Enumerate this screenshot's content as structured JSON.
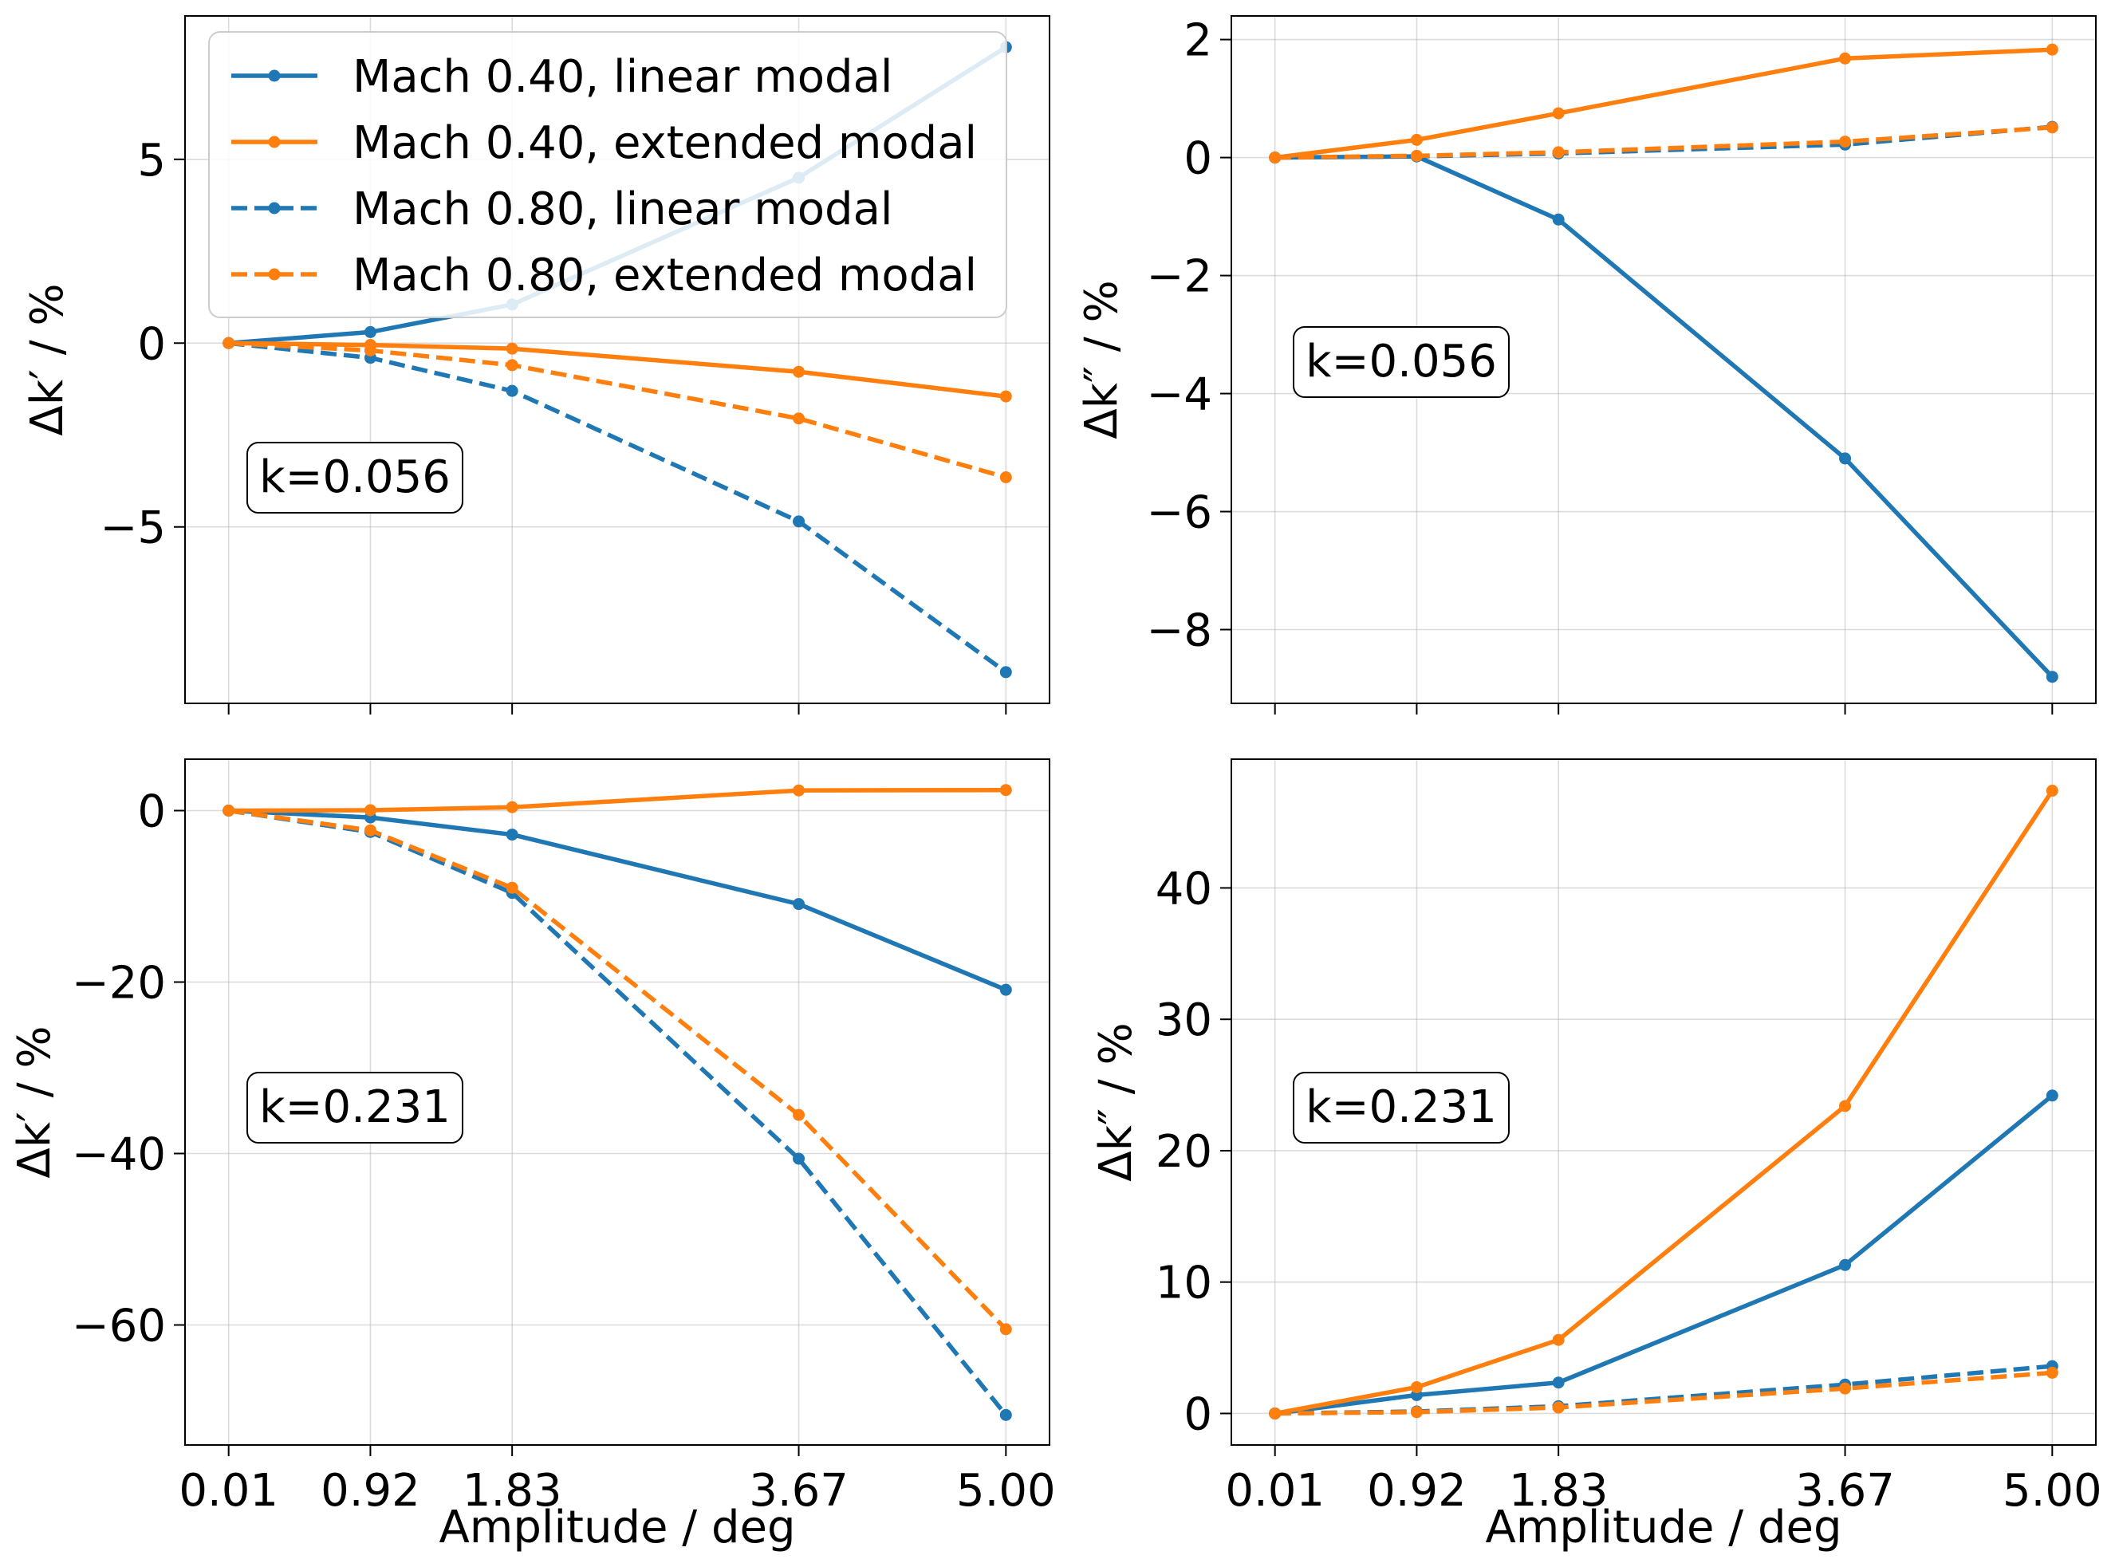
{
  "colors": {
    "blue": "#1f77b4",
    "orange": "#ff7f0e"
  },
  "legend": {
    "placement": "upper-left of top-left panel",
    "entries": [
      {
        "label": "Mach 0.40, linear modal",
        "color": "#1f77b4",
        "dash": "solid"
      },
      {
        "label": "Mach 0.40, extended modal",
        "color": "#ff7f0e",
        "dash": "solid"
      },
      {
        "label": "Mach 0.80, linear modal",
        "color": "#1f77b4",
        "dash": "dashed"
      },
      {
        "label": "Mach 0.80, extended modal",
        "color": "#ff7f0e",
        "dash": "dashed"
      }
    ]
  },
  "chart_data": [
    {
      "type": "line",
      "panel": "top-left",
      "annotation": "k=0.056",
      "xlabel": "",
      "ylabel": "Δk′ / %",
      "x": [
        0.01,
        0.92,
        1.83,
        3.67,
        5.0
      ],
      "xticks": [
        "0.01",
        "0.92",
        "1.83",
        "3.67",
        "5.00"
      ],
      "xlim": [
        -0.27,
        5.28
      ],
      "ylim": [
        -9.8,
        8.9
      ],
      "yticks": [
        -5,
        0,
        5
      ],
      "ytick_labels": [
        "−5",
        "0",
        "5"
      ],
      "grid": true,
      "series": [
        {
          "name": "Mach 0.40, linear modal",
          "color": "#1f77b4",
          "dash": "solid",
          "values": [
            0,
            0.3,
            1.05,
            4.5,
            8.05
          ]
        },
        {
          "name": "Mach 0.40, extended modal",
          "color": "#ff7f0e",
          "dash": "solid",
          "values": [
            0,
            -0.05,
            -0.15,
            -0.78,
            -1.45
          ]
        },
        {
          "name": "Mach 0.80, linear modal",
          "color": "#1f77b4",
          "dash": "dashed",
          "values": [
            0,
            -0.4,
            -1.3,
            -4.85,
            -8.95
          ]
        },
        {
          "name": "Mach 0.80, extended modal",
          "color": "#ff7f0e",
          "dash": "dashed",
          "values": [
            0,
            -0.2,
            -0.6,
            -2.05,
            -3.65
          ]
        }
      ]
    },
    {
      "type": "line",
      "panel": "top-right",
      "annotation": "k=0.056",
      "xlabel": "",
      "ylabel": "Δk″ / %",
      "x": [
        0.01,
        0.92,
        1.83,
        3.67,
        5.0
      ],
      "xticks": [
        "0.01",
        "0.92",
        "1.83",
        "3.67",
        "5.00"
      ],
      "xlim": [
        -0.27,
        5.28
      ],
      "ylim": [
        -9.25,
        2.4
      ],
      "yticks": [
        -8,
        -6,
        -4,
        -2,
        0,
        2
      ],
      "ytick_labels": [
        "−8",
        "−6",
        "−4",
        "−2",
        "0",
        "2"
      ],
      "grid": true,
      "series": [
        {
          "name": "Mach 0.40, linear modal",
          "color": "#1f77b4",
          "dash": "solid",
          "values": [
            0,
            0.02,
            -1.05,
            -5.1,
            -8.8
          ]
        },
        {
          "name": "Mach 0.40, extended modal",
          "color": "#ff7f0e",
          "dash": "solid",
          "values": [
            0,
            0.3,
            0.75,
            1.68,
            1.83
          ]
        },
        {
          "name": "Mach 0.80, linear modal",
          "color": "#1f77b4",
          "dash": "dashed",
          "values": [
            0,
            0.02,
            0.07,
            0.22,
            0.52
          ]
        },
        {
          "name": "Mach 0.80, extended modal",
          "color": "#ff7f0e",
          "dash": "dashed",
          "values": [
            0,
            0.03,
            0.09,
            0.27,
            0.51
          ]
        }
      ]
    },
    {
      "type": "line",
      "panel": "bottom-left",
      "annotation": "k=0.231",
      "xlabel": "Amplitude / deg",
      "ylabel": "Δk′ / %",
      "x": [
        0.01,
        0.92,
        1.83,
        3.67,
        5.0
      ],
      "xticks": [
        "0.01",
        "0.92",
        "1.83",
        "3.67",
        "5.00"
      ],
      "xlim": [
        -0.27,
        5.28
      ],
      "ylim": [
        -74.0,
        6.0
      ],
      "yticks": [
        -60,
        -40,
        -20,
        0
      ],
      "ytick_labels": [
        "−60",
        "−40",
        "−20",
        "0"
      ],
      "grid": true,
      "series": [
        {
          "name": "Mach 0.40, linear modal",
          "color": "#1f77b4",
          "dash": "solid",
          "values": [
            0,
            -0.8,
            -2.8,
            -10.9,
            -20.9
          ]
        },
        {
          "name": "Mach 0.40, extended modal",
          "color": "#ff7f0e",
          "dash": "solid",
          "values": [
            0,
            0.05,
            0.4,
            2.35,
            2.4
          ]
        },
        {
          "name": "Mach 0.80, linear modal",
          "color": "#1f77b4",
          "dash": "dashed",
          "values": [
            0,
            -2.5,
            -9.6,
            -40.6,
            -70.5
          ]
        },
        {
          "name": "Mach 0.80, extended modal",
          "color": "#ff7f0e",
          "dash": "dashed",
          "values": [
            0,
            -2.3,
            -9.0,
            -35.5,
            -60.5
          ]
        }
      ]
    },
    {
      "type": "line",
      "panel": "bottom-right",
      "annotation": "k=0.231",
      "xlabel": "Amplitude / deg",
      "ylabel": "Δk″ / %",
      "x": [
        0.01,
        0.92,
        1.83,
        3.67,
        5.0
      ],
      "xticks": [
        "0.01",
        "0.92",
        "1.83",
        "3.67",
        "5.00"
      ],
      "xlim": [
        -0.27,
        5.28
      ],
      "ylim": [
        -2.4,
        49.8
      ],
      "yticks": [
        0,
        10,
        20,
        30,
        40
      ],
      "ytick_labels": [
        "0",
        "10",
        "20",
        "30",
        "40"
      ],
      "grid": true,
      "series": [
        {
          "name": "Mach 0.40, linear modal",
          "color": "#1f77b4",
          "dash": "solid",
          "values": [
            0,
            1.4,
            2.35,
            11.3,
            24.2
          ]
        },
        {
          "name": "Mach 0.40, extended modal",
          "color": "#ff7f0e",
          "dash": "solid",
          "values": [
            0,
            2.0,
            5.6,
            23.4,
            47.4
          ]
        },
        {
          "name": "Mach 0.80, linear modal",
          "color": "#1f77b4",
          "dash": "dashed",
          "values": [
            0,
            0.15,
            0.55,
            2.2,
            3.6
          ]
        },
        {
          "name": "Mach 0.80, extended modal",
          "color": "#ff7f0e",
          "dash": "dashed",
          "values": [
            0,
            0.1,
            0.45,
            1.9,
            3.1
          ]
        }
      ]
    }
  ]
}
